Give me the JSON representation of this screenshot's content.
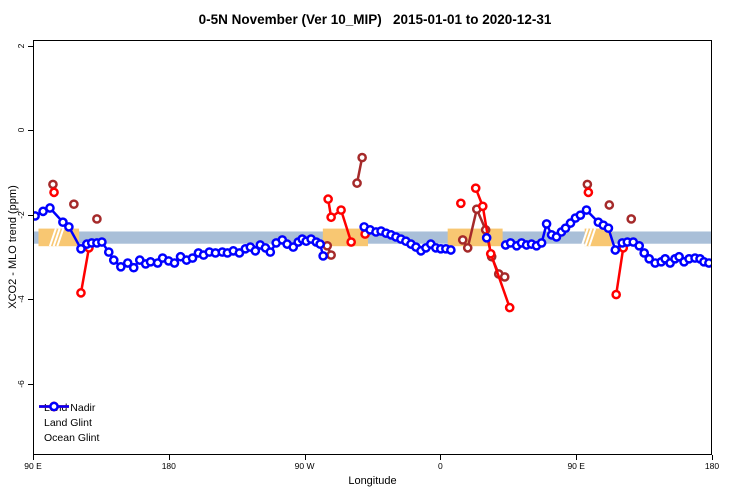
{
  "chart_data": {
    "type": "scatter",
    "title": "0-5N November (Ver 10_MIP)   2015-01-01 to 2020-12-31",
    "xlabel": "Longitude",
    "ylabel": "XCO2 - MLO trend (ppm)",
    "x_range": [
      90,
      540
    ],
    "y_range": [
      -7.68,
      2.14
    ],
    "grid": "off",
    "legend_position": "bottom-left",
    "x_ticks": [
      {
        "value": 90,
        "label": "90 E"
      },
      {
        "value": 180,
        "label": "180"
      },
      {
        "value": 270,
        "label": "90 W"
      },
      {
        "value": 360,
        "label": "0"
      },
      {
        "value": 450,
        "label": "90 E"
      },
      {
        "value": 540,
        "label": "180"
      }
    ],
    "y_ticks": [
      {
        "value": 2,
        "label": "2"
      },
      {
        "value": 0,
        "label": "0"
      },
      {
        "value": -2,
        "label": "-2"
      },
      {
        "value": -4,
        "label": "-4"
      },
      {
        "value": -6,
        "label": "-6"
      }
    ],
    "band": {
      "color": "#A9BFD8",
      "y_from": -2.39,
      "y_to": -2.68
    },
    "highlight_color": "#F8C772",
    "highlight_y_from": -2.32,
    "highlight_y_to": -2.74,
    "highlight_segments": [
      {
        "x_from": 93,
        "x_to": 120
      },
      {
        "x_from": 282,
        "x_to": 312
      },
      {
        "x_from": 365,
        "x_to": 401.5
      },
      {
        "x_from": 456,
        "x_to": 474
      }
    ],
    "hatch_marks": [
      104.5,
      107,
      109.5,
      458,
      460.5,
      463
    ],
    "series": [
      {
        "name": "Land Nadir",
        "color": "#A52A2A",
        "chains": [
          [
            [
              102.6,
              -1.27
            ]
          ],
          [
            [
              116.5,
              -1.74
            ]
          ],
          [
            [
              131.8,
              -2.09
            ]
          ],
          [
            [
              284.9,
              -2.73
            ],
            [
              287.5,
              -2.95
            ]
          ],
          [
            [
              304.7,
              -1.24
            ],
            [
              308.1,
              -0.63
            ]
          ],
          [
            [
              375.0,
              -2.59
            ],
            [
              378.3,
              -2.78
            ],
            [
              384.3,
              -1.86
            ],
            [
              390.2,
              -2.35
            ],
            [
              394.2,
              -2.99
            ],
            [
              398.9,
              -3.4
            ],
            [
              402.9,
              -3.47
            ]
          ],
          [
            [
              457.8,
              -1.27
            ]
          ],
          [
            [
              472.4,
              -1.76
            ]
          ],
          [
            [
              487.0,
              -2.09
            ]
          ]
        ]
      },
      {
        "name": "Land Glint",
        "color": "#FF0000",
        "chains": [
          [
            [
              103.3,
              -1.46
            ]
          ],
          [
            [
              126.5,
              -2.78
            ],
            [
              121.2,
              -3.85
            ]
          ],
          [
            [
              285.5,
              -1.62
            ],
            [
              287.5,
              -2.05
            ],
            [
              294.1,
              -1.88
            ],
            [
              300.8,
              -2.64
            ]
          ],
          [
            [
              310.1,
              -2.45
            ]
          ],
          [
            [
              373.7,
              -1.72
            ]
          ],
          [
            [
              383.6,
              -1.36
            ],
            [
              388.3,
              -1.79
            ],
            [
              393.6,
              -2.92
            ],
            [
              406.2,
              -4.2
            ]
          ],
          [
            [
              458.5,
              -1.46
            ]
          ],
          [
            [
              481.7,
              -2.78
            ],
            [
              477.0,
              -3.89
            ]
          ]
        ]
      },
      {
        "name": "Ocean Glint",
        "color": "#0000FF",
        "chains": [
          [
            [
              90.7,
              -2.02
            ],
            [
              96.0,
              -1.91
            ],
            [
              100.6,
              -1.83
            ],
            [
              109.2,
              -2.17
            ],
            [
              113.2,
              -2.28
            ],
            [
              121.2,
              -2.8
            ],
            [
              125.1,
              -2.69
            ],
            [
              128.4,
              -2.66
            ],
            [
              131.8,
              -2.66
            ],
            [
              135.1,
              -2.64
            ],
            [
              139.7,
              -2.88
            ],
            [
              143.0,
              -3.07
            ],
            [
              147.7,
              -3.23
            ],
            [
              152.3,
              -3.14
            ],
            [
              156.3,
              -3.25
            ],
            [
              160.3,
              -3.07
            ],
            [
              164.2,
              -3.16
            ],
            [
              167.5,
              -3.11
            ],
            [
              172.2,
              -3.14
            ],
            [
              175.5,
              -3.02
            ],
            [
              179.5,
              -3.09
            ],
            [
              183.4,
              -3.14
            ],
            [
              187.4,
              -2.99
            ],
            [
              191.4,
              -3.07
            ],
            [
              195.4,
              -3.02
            ],
            [
              199.3,
              -2.9
            ],
            [
              202.7,
              -2.95
            ],
            [
              206.6,
              -2.88
            ],
            [
              210.6,
              -2.9
            ],
            [
              215.2,
              -2.88
            ],
            [
              218.6,
              -2.9
            ],
            [
              222.5,
              -2.85
            ],
            [
              226.5,
              -2.9
            ],
            [
              230.5,
              -2.8
            ],
            [
              233.8,
              -2.76
            ],
            [
              237.1,
              -2.85
            ],
            [
              240.4,
              -2.71
            ],
            [
              243.8,
              -2.78
            ],
            [
              247.1,
              -2.88
            ],
            [
              251.0,
              -2.66
            ],
            [
              255.0,
              -2.59
            ],
            [
              258.3,
              -2.69
            ],
            [
              262.3,
              -2.76
            ],
            [
              265.6,
              -2.64
            ],
            [
              268.3,
              -2.57
            ],
            [
              270.9,
              -2.62
            ],
            [
              274.2,
              -2.57
            ],
            [
              277.6,
              -2.64
            ],
            [
              280.2,
              -2.69
            ],
            [
              282.2,
              -2.97
            ]
          ],
          [
            [
              309.4,
              -2.28
            ],
            [
              313.4,
              -2.35
            ],
            [
              317.3,
              -2.4
            ],
            [
              320.7,
              -2.38
            ],
            [
              324.0,
              -2.43
            ],
            [
              327.3,
              -2.47
            ],
            [
              330.6,
              -2.52
            ],
            [
              333.9,
              -2.57
            ],
            [
              337.2,
              -2.62
            ],
            [
              340.6,
              -2.69
            ],
            [
              343.9,
              -2.76
            ],
            [
              347.2,
              -2.85
            ],
            [
              350.5,
              -2.78
            ],
            [
              353.8,
              -2.69
            ],
            [
              357.1,
              -2.78
            ],
            [
              360.4,
              -2.8
            ],
            [
              363.8,
              -2.8
            ],
            [
              367.1,
              -2.83
            ]
          ],
          [
            [
              390.9,
              -2.54
            ]
          ],
          [
            [
              403.5,
              -2.71
            ],
            [
              406.8,
              -2.66
            ],
            [
              410.8,
              -2.73
            ],
            [
              414.1,
              -2.66
            ],
            [
              417.4,
              -2.71
            ],
            [
              420.7,
              -2.69
            ],
            [
              424.0,
              -2.73
            ],
            [
              427.4,
              -2.66
            ],
            [
              430.7,
              -2.21
            ],
            [
              434.0,
              -2.47
            ],
            [
              437.3,
              -2.52
            ],
            [
              440.6,
              -2.4
            ],
            [
              443.3,
              -2.31
            ],
            [
              446.6,
              -2.19
            ],
            [
              449.9,
              -2.07
            ],
            [
              453.2,
              -2.0
            ],
            [
              457.2,
              -1.88
            ],
            [
              465.1,
              -2.17
            ],
            [
              468.4,
              -2.24
            ],
            [
              471.8,
              -2.31
            ],
            [
              476.4,
              -2.83
            ],
            [
              481.0,
              -2.66
            ],
            [
              484.4,
              -2.64
            ],
            [
              488.3,
              -2.64
            ],
            [
              492.3,
              -2.73
            ],
            [
              495.6,
              -2.9
            ],
            [
              498.9,
              -3.04
            ],
            [
              502.9,
              -3.14
            ],
            [
              506.9,
              -3.11
            ],
            [
              509.5,
              -3.04
            ],
            [
              512.8,
              -3.14
            ],
            [
              516.1,
              -3.04
            ],
            [
              518.8,
              -2.99
            ],
            [
              522.1,
              -3.11
            ],
            [
              525.4,
              -3.04
            ],
            [
              529.4,
              -3.02
            ],
            [
              532.7,
              -3.04
            ],
            [
              535.3,
              -3.11
            ],
            [
              538.6,
              -3.14
            ]
          ]
        ]
      }
    ]
  }
}
